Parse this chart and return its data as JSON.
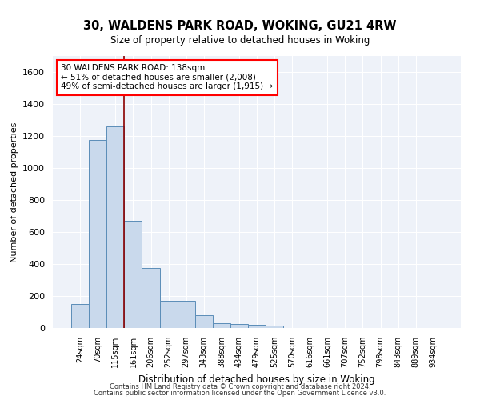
{
  "title": "30, WALDENS PARK ROAD, WOKING, GU21 4RW",
  "subtitle": "Size of property relative to detached houses in Woking",
  "xlabel": "Distribution of detached houses by size in Woking",
  "ylabel": "Number of detached properties",
  "categories": [
    "24sqm",
    "70sqm",
    "115sqm",
    "161sqm",
    "206sqm",
    "252sqm",
    "297sqm",
    "343sqm",
    "388sqm",
    "434sqm",
    "479sqm",
    "525sqm",
    "570sqm",
    "616sqm",
    "661sqm",
    "707sqm",
    "752sqm",
    "798sqm",
    "843sqm",
    "889sqm",
    "934sqm"
  ],
  "values": [
    150,
    1175,
    1260,
    670,
    375,
    170,
    170,
    80,
    30,
    25,
    20,
    15,
    0,
    0,
    0,
    0,
    0,
    0,
    0,
    0,
    0
  ],
  "bar_color": "#c9d9ec",
  "bar_edge_color": "#5b8db8",
  "red_line_x": 2.5,
  "annotation_text": "30 WALDENS PARK ROAD: 138sqm\n← 51% of detached houses are smaller (2,008)\n49% of semi-detached houses are larger (1,915) →",
  "ylim": [
    0,
    1700
  ],
  "yticks": [
    0,
    200,
    400,
    600,
    800,
    1000,
    1200,
    1400,
    1600
  ],
  "background_color": "#eef2f9",
  "grid_color": "#ffffff",
  "footer_line1": "Contains HM Land Registry data © Crown copyright and database right 2024.",
  "footer_line2": "Contains public sector information licensed under the Open Government Licence v3.0."
}
